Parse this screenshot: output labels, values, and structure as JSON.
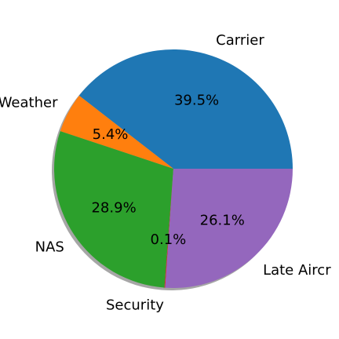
{
  "chart_data": {
    "type": "pie",
    "title": "",
    "start_angle_deg": 0,
    "direction": "counterclockwise",
    "shadow": true,
    "slices": [
      {
        "name": "Carrier",
        "value": 39.5,
        "pct_label": "39.5%",
        "color": "#1f77b4"
      },
      {
        "name": "Weather",
        "value": 5.4,
        "pct_label": "5.4%",
        "color": "#ff7f0e"
      },
      {
        "name": "NAS",
        "value": 28.9,
        "pct_label": "28.9%",
        "color": "#2ca02c"
      },
      {
        "name": "Security",
        "value": 0.1,
        "pct_label": "0.1%",
        "color": "#d62728"
      },
      {
        "name": "Late Aircr",
        "value": 26.1,
        "pct_label": "26.1%",
        "color": "#9467bd"
      }
    ]
  }
}
